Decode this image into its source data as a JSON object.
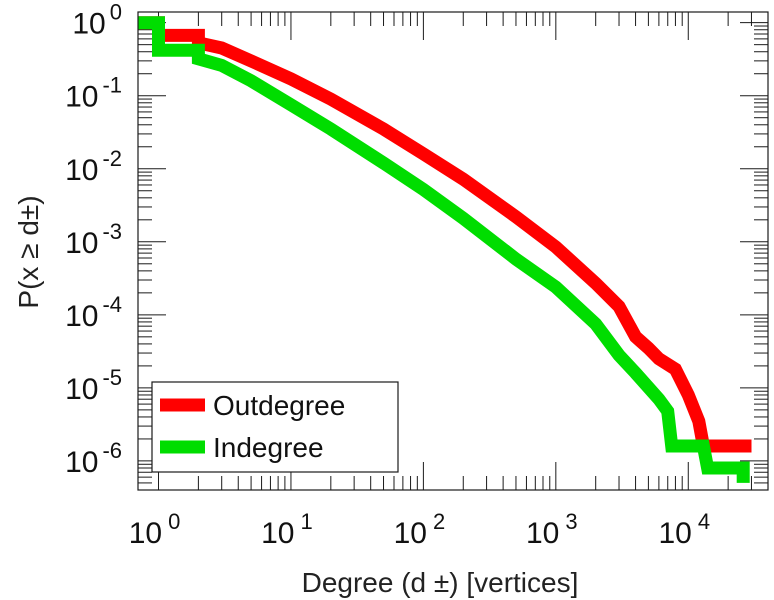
{
  "chart_data": {
    "type": "line",
    "title": "",
    "xlabel": "Degree (d ±) [vertices]",
    "ylabel": "P(x ≥ d±)",
    "x_scale": "log",
    "y_scale": "log",
    "xlim": [
      0.7,
      40000
    ],
    "ylim": [
      4e-07,
      1.4
    ],
    "grid": false,
    "legend_position": "lower-left",
    "x_ticks": [
      {
        "base": "10",
        "exp": "0",
        "value": 1
      },
      {
        "base": "10",
        "exp": "1",
        "value": 10
      },
      {
        "base": "10",
        "exp": "2",
        "value": 100
      },
      {
        "base": "10",
        "exp": "3",
        "value": 1000
      },
      {
        "base": "10",
        "exp": "4",
        "value": 10000
      }
    ],
    "y_ticks": [
      {
        "base": "10",
        "exp": "0",
        "value": 1
      },
      {
        "base": "10",
        "exp": "-1",
        "value": 0.1
      },
      {
        "base": "10",
        "exp": "-2",
        "value": 0.01
      },
      {
        "base": "10",
        "exp": "-3",
        "value": 0.001
      },
      {
        "base": "10",
        "exp": "-4",
        "value": 0.0001
      },
      {
        "base": "10",
        "exp": "-5",
        "value": 1e-05
      },
      {
        "base": "10",
        "exp": "-6",
        "value": 1e-06
      }
    ],
    "series": [
      {
        "name": "Outdegree",
        "color": "#ff0000",
        "points": [
          [
            0.7,
            1.0
          ],
          [
            1.0,
            1.0
          ],
          [
            1.0,
            0.67
          ],
          [
            2.0,
            0.67
          ],
          [
            2.0,
            0.53
          ],
          [
            3.0,
            0.45
          ],
          [
            5.0,
            0.3
          ],
          [
            10.0,
            0.17
          ],
          [
            20.0,
            0.09
          ],
          [
            50.0,
            0.035
          ],
          [
            100.0,
            0.016
          ],
          [
            200.0,
            0.0072
          ],
          [
            500.0,
            0.0022
          ],
          [
            1000.0,
            0.00085
          ],
          [
            2000.0,
            0.00027
          ],
          [
            3000.0,
            0.00013
          ],
          [
            4000.0,
            5e-05
          ],
          [
            5000.0,
            3.5e-05
          ],
          [
            6000.0,
            2.5e-05
          ],
          [
            8000.0,
            1.8e-05
          ],
          [
            10000.0,
            8e-06
          ],
          [
            12000.0,
            3.5e-06
          ],
          [
            13000.0,
            1.6e-06
          ],
          [
            30000.0,
            1.6e-06
          ]
        ]
      },
      {
        "name": "Indegree",
        "color": "#00dd00",
        "points": [
          [
            0.7,
            1.0
          ],
          [
            1.0,
            1.0
          ],
          [
            1.0,
            0.42
          ],
          [
            2.0,
            0.42
          ],
          [
            2.0,
            0.32
          ],
          [
            3.0,
            0.26
          ],
          [
            5.0,
            0.16
          ],
          [
            10.0,
            0.075
          ],
          [
            20.0,
            0.035
          ],
          [
            50.0,
            0.012
          ],
          [
            100.0,
            0.0052
          ],
          [
            200.0,
            0.0021
          ],
          [
            500.0,
            0.00058
          ],
          [
            1000.0,
            0.00024
          ],
          [
            2000.0,
            7.5e-05
          ],
          [
            3000.0,
            2.8e-05
          ],
          [
            4000.0,
            1.6e-05
          ],
          [
            6000.0,
            7e-06
          ],
          [
            7000.0,
            4.8e-06
          ],
          [
            7500.0,
            1.6e-06
          ],
          [
            13000.0,
            1.6e-06
          ],
          [
            14000.0,
            8e-07
          ],
          [
            26000.0,
            8e-07
          ],
          [
            26000.0,
            5e-07
          ]
        ]
      }
    ]
  }
}
